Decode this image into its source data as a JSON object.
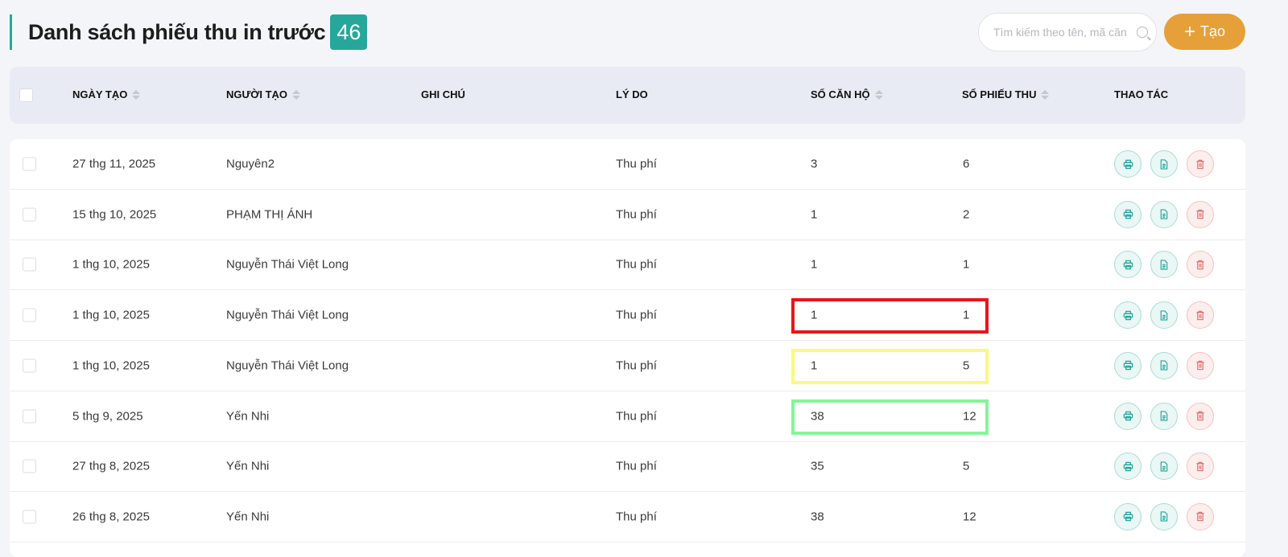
{
  "header": {
    "title": "Danh sách phiếu thu in trước",
    "count": "46",
    "search_placeholder": "Tìm kiếm theo tên, mã căn hộ",
    "create_label": "Tạo",
    "create_color": "#e6a03a",
    "accent": "#27a79c"
  },
  "columns": [
    "NGÀY TẠO",
    "NGƯỜI TẠO",
    "GHI CHÚ",
    "LÝ DO",
    "SỐ CĂN HỘ",
    "SỐ PHIẾU THU",
    "THAO TÁC"
  ],
  "rows": [
    {
      "date": "27 thg 11, 2025",
      "creator": "Nguyên2",
      "note": "",
      "reason": "Thu phí",
      "apartments": "3",
      "receipts": "6"
    },
    {
      "date": "15 thg 10, 2025",
      "creator": "PHẠM THỊ ÁNH",
      "note": "",
      "reason": "Thu phí",
      "apartments": "1",
      "receipts": "2"
    },
    {
      "date": "1 thg 10, 2025",
      "creator": "Nguyễn Thái Việt Long",
      "note": "",
      "reason": "Thu phí",
      "apartments": "1",
      "receipts": "1"
    },
    {
      "date": "1 thg 10, 2025",
      "creator": "Nguyễn Thái Việt Long",
      "note": "",
      "reason": "Thu phí",
      "apartments": "1",
      "receipts": "1",
      "highlight": "#e8161b"
    },
    {
      "date": "1 thg 10, 2025",
      "creator": "Nguyễn Thái Việt Long",
      "note": "",
      "reason": "Thu phí",
      "apartments": "1",
      "receipts": "5",
      "highlight": "#fbf97a"
    },
    {
      "date": "5 thg 9, 2025",
      "creator": "Yến Nhi",
      "note": "",
      "reason": "Thu phí",
      "apartments": "38",
      "receipts": "12",
      "highlight": "#86f59a"
    },
    {
      "date": "27 thg 8, 2025",
      "creator": "Yến Nhi",
      "note": "",
      "reason": "Thu phí",
      "apartments": "35",
      "receipts": "5"
    },
    {
      "date": "26 thg 8, 2025",
      "creator": "Yến Nhi",
      "note": "",
      "reason": "Thu phí",
      "apartments": "38",
      "receipts": "12"
    }
  ],
  "actions": {
    "print_icon": "printer-icon",
    "doc_icon": "document-icon",
    "delete_icon": "trash-icon"
  }
}
